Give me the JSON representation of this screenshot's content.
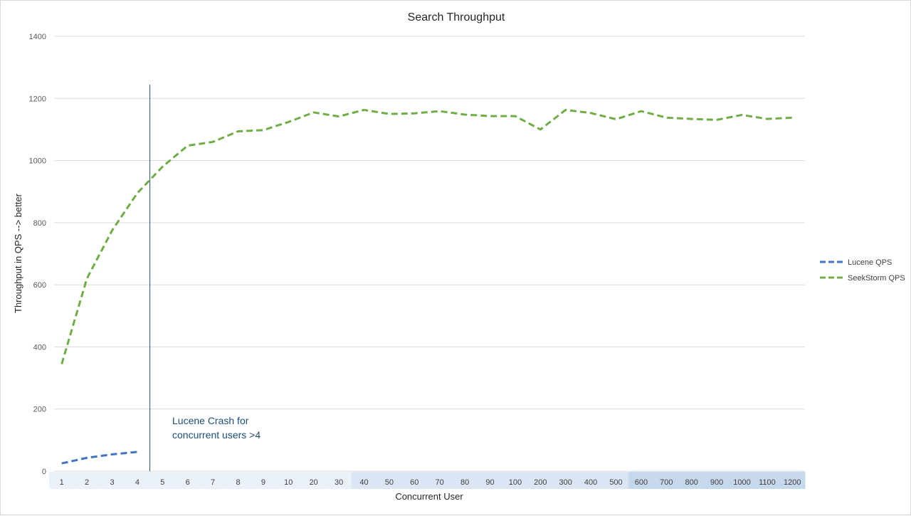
{
  "chart_data": {
    "type": "line",
    "title": "Search Throughput",
    "xlabel": "Concurrent User",
    "ylabel": "Throughput in QPS --> better",
    "ylim": [
      0,
      1400
    ],
    "yticks": [
      0,
      200,
      400,
      600,
      800,
      1000,
      1200,
      1400
    ],
    "grid": true,
    "legend_position": "right",
    "categories": [
      "1",
      "2",
      "3",
      "4",
      "5",
      "6",
      "7",
      "8",
      "9",
      "10",
      "20",
      "30",
      "40",
      "50",
      "60",
      "70",
      "80",
      "90",
      "100",
      "200",
      "300",
      "400",
      "500",
      "600",
      "700",
      "800",
      "900",
      "1000",
      "1100",
      "1200"
    ],
    "series": [
      {
        "name": "Lucene QPS",
        "color": "#4472c4",
        "dash": "dashed",
        "values": [
          25,
          43,
          54,
          62,
          null,
          null,
          null,
          null,
          null,
          null,
          null,
          null,
          null,
          null,
          null,
          null,
          null,
          null,
          null,
          null,
          null,
          null,
          null,
          null,
          null,
          null,
          null,
          null,
          null,
          null
        ]
      },
      {
        "name": "SeekStorm QPS",
        "color": "#70ad47",
        "dash": "dashed",
        "values": [
          345,
          620,
          775,
          895,
          980,
          1048,
          1060,
          1094,
          1098,
          1124,
          1155,
          1142,
          1163,
          1150,
          1152,
          1159,
          1148,
          1143,
          1143,
          1100,
          1163,
          1153,
          1133,
          1159,
          1138,
          1134,
          1131,
          1147,
          1134,
          1138
        ]
      }
    ],
    "marker_after_category": "4",
    "annotation": [
      "Lucene Crash for",
      "concurrent users >4"
    ]
  }
}
